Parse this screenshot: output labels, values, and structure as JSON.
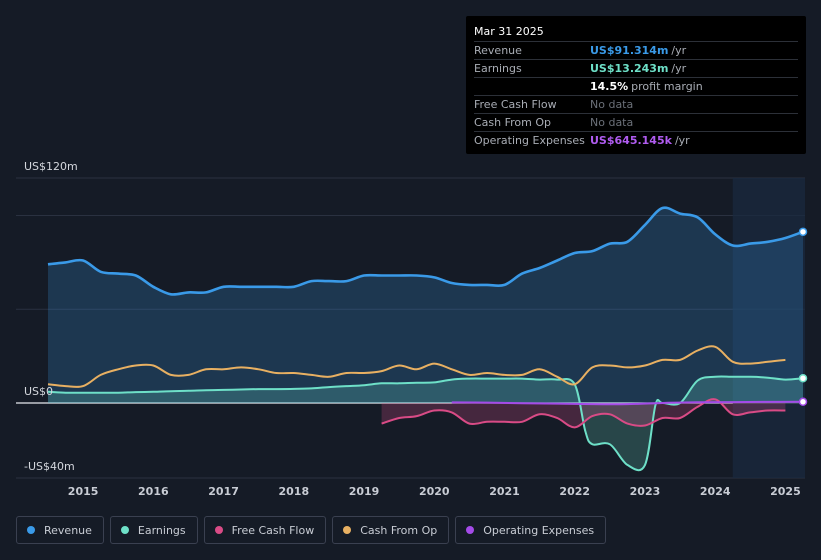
{
  "tooltip": {
    "date": "Mar 31 2025",
    "rows": [
      {
        "label": "Revenue",
        "value": "US$91.314m",
        "unit": "/yr",
        "color": "#3a9ae8"
      },
      {
        "label": "Earnings",
        "value": "US$13.243m",
        "unit": "/yr",
        "color": "#6ee0c8"
      },
      {
        "label": "",
        "value": "14.5%",
        "unit": "profit margin",
        "color": "#ffffff"
      },
      {
        "label": "Free Cash Flow",
        "value": "No data",
        "unit": "",
        "color": "#6b7079"
      },
      {
        "label": "Cash From Op",
        "value": "No data",
        "unit": "",
        "color": "#6b7079"
      },
      {
        "label": "Operating Expenses",
        "value": "US$645.145k",
        "unit": "/yr",
        "color": "#b05cf0"
      }
    ]
  },
  "legend": [
    {
      "label": "Revenue",
      "color": "#3a9ae8"
    },
    {
      "label": "Earnings",
      "color": "#6ee0c8"
    },
    {
      "label": "Free Cash Flow",
      "color": "#d94b86"
    },
    {
      "label": "Cash From Op",
      "color": "#e8b062"
    },
    {
      "label": "Operating Expenses",
      "color": "#a44be8"
    }
  ],
  "chart_data": {
    "type": "area",
    "y_unit": "US$m",
    "ylim": [
      -40,
      120
    ],
    "y_tick_labels": [
      {
        "value": 120,
        "label": "US$120m"
      },
      {
        "value": 0,
        "label": "US$0"
      },
      {
        "value": -40,
        "label": "-US$40m"
      }
    ],
    "x_range": [
      2014.5,
      2025.25
    ],
    "x_tick_labels": [
      "2015",
      "2016",
      "2017",
      "2018",
      "2019",
      "2020",
      "2021",
      "2022",
      "2023",
      "2024",
      "2025"
    ],
    "x_tick_values": [
      2015,
      2016,
      2017,
      2018,
      2019,
      2020,
      2021,
      2022,
      2023,
      2024,
      2025
    ],
    "highlight_start": 2024.25,
    "series": [
      {
        "name": "Revenue",
        "color": "#3a9ae8",
        "fill": true,
        "x": [
          2014.5,
          2014.75,
          2015.0,
          2015.25,
          2015.5,
          2015.75,
          2016.0,
          2016.25,
          2016.5,
          2016.75,
          2017.0,
          2017.25,
          2017.5,
          2017.75,
          2018.0,
          2018.25,
          2018.5,
          2018.75,
          2019.0,
          2019.25,
          2019.5,
          2019.75,
          2020.0,
          2020.25,
          2020.5,
          2020.75,
          2021.0,
          2021.25,
          2021.5,
          2021.75,
          2022.0,
          2022.25,
          2022.5,
          2022.75,
          2023.0,
          2023.25,
          2023.5,
          2023.75,
          2024.0,
          2024.25,
          2024.5,
          2024.75,
          2025.0,
          2025.25
        ],
        "values": [
          74,
          75,
          76,
          70,
          69,
          68,
          62,
          58,
          59,
          59,
          62,
          62,
          62,
          62,
          62,
          65,
          65,
          65,
          68,
          68,
          68,
          68,
          67,
          64,
          63,
          63,
          63,
          69,
          72,
          76,
          80,
          81,
          85,
          86,
          95,
          104,
          101,
          99,
          90,
          84,
          85,
          86,
          88,
          91.3
        ]
      },
      {
        "name": "Earnings",
        "color": "#6ee0c8",
        "fill": true,
        "x": [
          2014.5,
          2014.75,
          2015.0,
          2015.25,
          2015.5,
          2015.75,
          2016.0,
          2016.25,
          2016.5,
          2016.75,
          2017.0,
          2017.25,
          2017.5,
          2017.75,
          2018.0,
          2018.25,
          2018.5,
          2018.75,
          2019.0,
          2019.25,
          2019.5,
          2019.75,
          2020.0,
          2020.25,
          2020.5,
          2020.75,
          2021.0,
          2021.25,
          2021.5,
          2021.75,
          2022.0,
          2022.15,
          2022.25,
          2022.5,
          2022.75,
          2023.0,
          2023.15,
          2023.25,
          2023.5,
          2023.75,
          2024.0,
          2024.25,
          2024.5,
          2024.75,
          2025.0,
          2025.25
        ],
        "values": [
          6,
          5.5,
          5.5,
          5.5,
          5.5,
          5.8,
          6,
          6.3,
          6.5,
          6.8,
          7,
          7.2,
          7.4,
          7.4,
          7.5,
          7.8,
          8.5,
          9,
          9.5,
          10.5,
          10.5,
          10.8,
          11,
          12.5,
          13,
          13,
          13,
          13,
          12.5,
          12.5,
          10,
          -15,
          -22,
          -22,
          -33,
          -33,
          -1,
          0,
          0,
          12,
          14,
          14,
          14,
          13.5,
          12.5,
          13.2
        ]
      },
      {
        "name": "Free Cash Flow",
        "color": "#d94b86",
        "fill": true,
        "x": [
          2019.25,
          2019.5,
          2019.75,
          2020.0,
          2020.25,
          2020.5,
          2020.75,
          2021.0,
          2021.25,
          2021.5,
          2021.75,
          2022.0,
          2022.25,
          2022.5,
          2022.75,
          2023.0,
          2023.25,
          2023.5,
          2023.75,
          2024.0,
          2024.25,
          2024.5,
          2024.75,
          2025.0
        ],
        "values": [
          -11,
          -8,
          -7,
          -4,
          -5,
          -11,
          -10,
          -10,
          -10,
          -6,
          -8,
          -13,
          -7,
          -6,
          -11,
          -12,
          -8,
          -8,
          -2,
          2,
          -6,
          -5,
          -4,
          -4
        ]
      },
      {
        "name": "Cash From Op",
        "color": "#e8b062",
        "fill": false,
        "x": [
          2014.5,
          2014.75,
          2015.0,
          2015.25,
          2015.5,
          2015.75,
          2016.0,
          2016.25,
          2016.5,
          2016.75,
          2017.0,
          2017.25,
          2017.5,
          2017.75,
          2018.0,
          2018.25,
          2018.5,
          2018.75,
          2019.0,
          2019.25,
          2019.5,
          2019.75,
          2020.0,
          2020.25,
          2020.5,
          2020.75,
          2021.0,
          2021.25,
          2021.5,
          2021.75,
          2022.0,
          2022.25,
          2022.5,
          2022.75,
          2023.0,
          2023.25,
          2023.5,
          2023.75,
          2024.0,
          2024.25,
          2024.5,
          2024.75,
          2025.0
        ],
        "values": [
          10,
          9,
          9,
          15,
          18,
          20,
          20,
          15,
          15,
          18,
          18,
          19,
          18,
          16,
          16,
          15,
          14,
          16,
          16,
          17,
          20,
          18,
          21,
          18,
          15,
          16,
          15,
          15,
          18,
          14,
          10,
          19,
          20,
          19,
          20,
          23,
          23,
          28,
          30,
          22,
          21,
          22,
          23
        ]
      },
      {
        "name": "Operating Expenses",
        "color": "#a44be8",
        "fill": false,
        "x": [
          2020.25,
          2020.75,
          2021.25,
          2021.75,
          2022.25,
          2022.75,
          2023.25,
          2023.75,
          2024.25,
          2024.75,
          2025.25
        ],
        "values": [
          0.3,
          0.2,
          -0.1,
          -0.3,
          -0.6,
          -0.6,
          0,
          0.4,
          0.5,
          0.6,
          0.65
        ]
      }
    ]
  }
}
